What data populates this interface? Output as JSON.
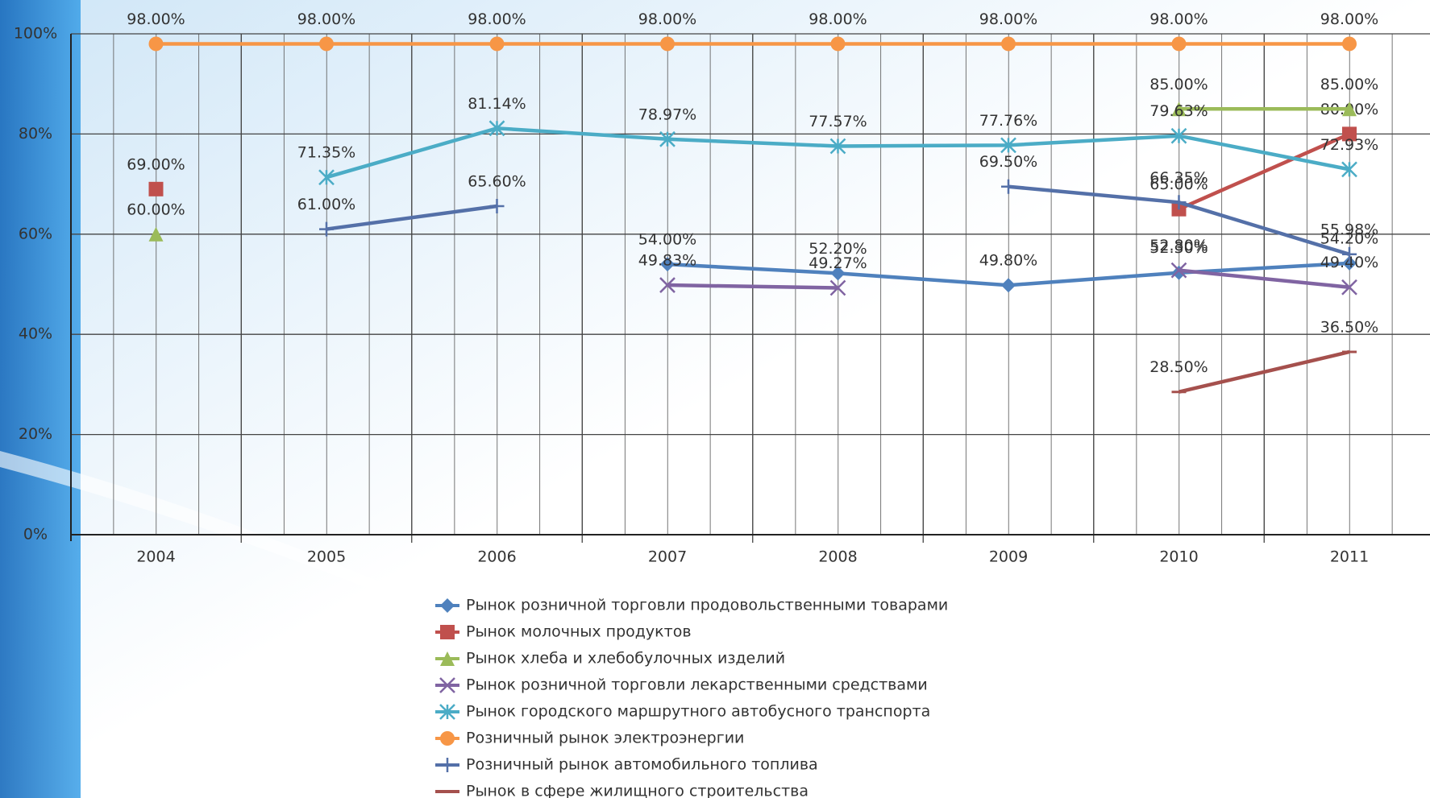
{
  "chart_data": {
    "type": "line",
    "categories": [
      "2004",
      "2005",
      "2006",
      "2007",
      "2008",
      "2009",
      "2010",
      "2011"
    ],
    "ylim": [
      0,
      100
    ],
    "yticks": [
      {
        "value": 0,
        "label": "0%"
      },
      {
        "value": 20,
        "label": "20%"
      },
      {
        "value": 40,
        "label": "40%"
      },
      {
        "value": 60,
        "label": "60%"
      },
      {
        "value": 80,
        "label": "80%"
      },
      {
        "value": 100,
        "label": "100%"
      }
    ],
    "grid": true,
    "series": [
      {
        "name": "Рынок розничной торговли продовольственными товарами",
        "color": "#4f81bd",
        "marker": "diamond",
        "values": [
          null,
          null,
          null,
          54.0,
          52.2,
          49.8,
          52.3,
          54.2
        ],
        "value_labels": [
          null,
          null,
          null,
          "54.00%",
          "52.20%",
          "49.80%",
          "52.30%",
          "54.20%"
        ]
      },
      {
        "name": "Рынок молочных продуктов",
        "color": "#c0504d",
        "marker": "square",
        "values": [
          69.0,
          null,
          null,
          null,
          null,
          null,
          65.0,
          80.0
        ],
        "value_labels": [
          "69.00%",
          null,
          null,
          null,
          null,
          null,
          "65.00%",
          "80.00%"
        ]
      },
      {
        "name": "Рынок хлеба и хлебобулочных изделий",
        "color": "#9bbb59",
        "marker": "triangle",
        "values": [
          60.0,
          null,
          null,
          null,
          null,
          null,
          85.0,
          85.0
        ],
        "value_labels": [
          "60.00%",
          null,
          null,
          null,
          null,
          null,
          "85.00%",
          "85.00%"
        ]
      },
      {
        "name": "Рынок розничной торговли лекарственными средствами",
        "color": "#8064a2",
        "marker": "x",
        "values": [
          null,
          null,
          null,
          49.83,
          49.27,
          null,
          52.8,
          49.4
        ],
        "value_labels": [
          null,
          null,
          null,
          "49.83%",
          "49.27%",
          null,
          "52.80%",
          "49.40%"
        ]
      },
      {
        "name": "Рынок городского маршрутного автобусного транспорта",
        "color": "#4bacc6",
        "marker": "star",
        "values": [
          null,
          71.35,
          81.14,
          78.97,
          77.57,
          77.76,
          79.63,
          72.93
        ],
        "value_labels": [
          null,
          "71.35%",
          "81.14%",
          "78.97%",
          "77.57%",
          "77.76%",
          "79.63%",
          "72.93%"
        ]
      },
      {
        "name": "Розничный рынок электроэнергии",
        "color": "#f79646",
        "marker": "circle",
        "values": [
          98.0,
          98.0,
          98.0,
          98.0,
          98.0,
          98.0,
          98.0,
          98.0
        ],
        "value_labels": [
          "98.00%",
          "98.00%",
          "98.00%",
          "98.00%",
          "98.00%",
          "98.00%",
          "98.00%",
          "98.00%"
        ]
      },
      {
        "name": "Розничный рынок автомобильного топлива",
        "color": "#5470a8",
        "marker": "plus",
        "values": [
          null,
          61.0,
          65.6,
          null,
          null,
          69.5,
          66.35,
          55.98
        ],
        "value_labels": [
          null,
          "61.00%",
          "65.60%",
          null,
          null,
          "69.50%",
          "66.35%",
          "55.98%"
        ]
      },
      {
        "name": "Рынок в сфере жилищного строительства",
        "color": "#a5504d",
        "marker": "dash",
        "values": [
          null,
          null,
          null,
          null,
          null,
          null,
          28.5,
          36.5
        ],
        "value_labels": [
          null,
          null,
          null,
          null,
          null,
          null,
          "28.50%",
          "36.50%"
        ]
      }
    ]
  }
}
